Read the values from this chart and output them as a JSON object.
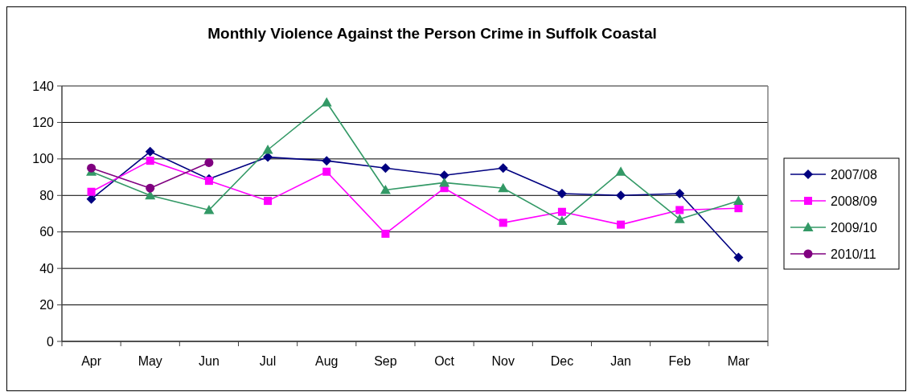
{
  "chart_data": {
    "type": "line",
    "title": "Monthly Violence Against the Person Crime in Suffolk Coastal",
    "categories": [
      "Apr",
      "May",
      "Jun",
      "Jul",
      "Aug",
      "Sep",
      "Oct",
      "Nov",
      "Dec",
      "Jan",
      "Feb",
      "Mar"
    ],
    "series": [
      {
        "name": "2007/08",
        "color": "#000080",
        "marker": "diamond",
        "values": [
          78,
          104,
          89,
          101,
          99,
          95,
          91,
          95,
          81,
          80,
          81,
          46
        ]
      },
      {
        "name": "2008/09",
        "color": "#ff00ff",
        "marker": "square",
        "values": [
          82,
          99,
          88,
          77,
          93,
          59,
          84,
          65,
          71,
          64,
          72,
          73
        ]
      },
      {
        "name": "2009/10",
        "color": "#339966",
        "marker": "triangle",
        "values": [
          93,
          80,
          72,
          105,
          131,
          83,
          87,
          84,
          66,
          93,
          67,
          77
        ]
      },
      {
        "name": "2010/11",
        "color": "#800080",
        "marker": "circle",
        "values": [
          95,
          84,
          98,
          null,
          null,
          null,
          null,
          null,
          null,
          null,
          null,
          null
        ]
      }
    ],
    "ylim": [
      0,
      140
    ],
    "yticks": [
      0,
      20,
      40,
      60,
      80,
      100,
      120,
      140
    ],
    "grid": "y",
    "legend": "right",
    "line_style": "solid"
  }
}
